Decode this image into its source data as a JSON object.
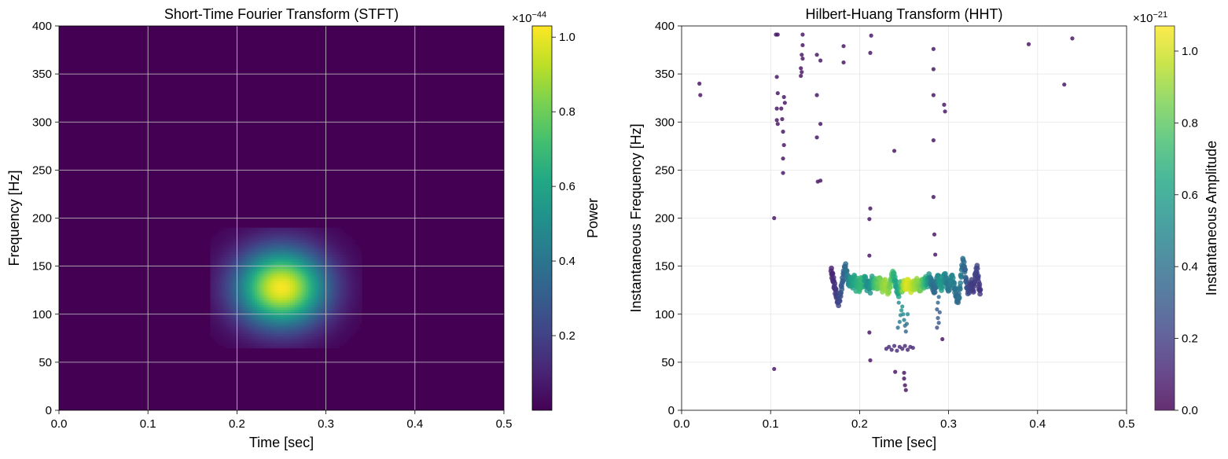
{
  "chart_data": [
    {
      "type": "heatmap",
      "title": "Short-Time Fourier Transform (STFT)",
      "xlabel": "Time [sec]",
      "ylabel": "Frequency [Hz]",
      "xlim": [
        0,
        0.5
      ],
      "ylim": [
        0,
        400
      ],
      "xticks": [
        0.0,
        0.1,
        0.2,
        0.3,
        0.4,
        0.5
      ],
      "xtick_labels": [
        "0.0",
        "0.1",
        "0.2",
        "0.3",
        "0.4",
        "0.5"
      ],
      "yticks": [
        0,
        50,
        100,
        150,
        200,
        250,
        300,
        350,
        400
      ],
      "ytick_labels": [
        "0",
        "50",
        "100",
        "150",
        "200",
        "250",
        "300",
        "350",
        "400"
      ],
      "grid": true,
      "colormap": "viridis",
      "blob": {
        "center_time": 0.25,
        "center_freq": 128,
        "time_sigma": 0.035,
        "freq_sigma": 28,
        "time_extent": [
          0.17,
          0.34
        ],
        "freq_extent": [
          65,
          190
        ],
        "peak_power": 1.02
      },
      "colorbar": {
        "label": "Power",
        "range": [
          0.0,
          1.03
        ],
        "ticks": [
          0.2,
          0.4,
          0.6,
          0.8,
          1.0
        ],
        "tick_labels": [
          "0.2",
          "0.4",
          "0.6",
          "0.8",
          "1.0"
        ],
        "scale_label": "×10",
        "scale_exp": "−44"
      }
    },
    {
      "type": "scatter",
      "title": "Hilbert-Huang Transform (HHT)",
      "xlabel": "Time [sec]",
      "ylabel": "Instantaneous Frequency [Hz]",
      "xlim": [
        0,
        0.5
      ],
      "ylim": [
        0,
        400
      ],
      "xticks": [
        0.0,
        0.1,
        0.2,
        0.3,
        0.4,
        0.5
      ],
      "xtick_labels": [
        "0.0",
        "0.1",
        "0.2",
        "0.3",
        "0.4",
        "0.5"
      ],
      "yticks": [
        0,
        50,
        100,
        150,
        200,
        250,
        300,
        350,
        400
      ],
      "ytick_labels": [
        "0",
        "50",
        "100",
        "150",
        "200",
        "250",
        "300",
        "350",
        "400"
      ],
      "grid": true,
      "colormap": "viridis",
      "points": [
        [
          0.02,
          340,
          0.05
        ],
        [
          0.021,
          328,
          0.05
        ],
        [
          0.104,
          43,
          0.05
        ],
        [
          0.104,
          200,
          0.05
        ],
        [
          0.106,
          391,
          0.05
        ],
        [
          0.108,
          391,
          0.05
        ],
        [
          0.107,
          347,
          0.05
        ],
        [
          0.108,
          330,
          0.05
        ],
        [
          0.107,
          314,
          0.05
        ],
        [
          0.107,
          302,
          0.05
        ],
        [
          0.108,
          298,
          0.05
        ],
        [
          0.112,
          314,
          0.05
        ],
        [
          0.113,
          303,
          0.05
        ],
        [
          0.115,
          326,
          0.05
        ],
        [
          0.116,
          320,
          0.05
        ],
        [
          0.114,
          290,
          0.05
        ],
        [
          0.115,
          276,
          0.05
        ],
        [
          0.114,
          262,
          0.05
        ],
        [
          0.114,
          247,
          0.05
        ],
        [
          0.136,
          391,
          0.05
        ],
        [
          0.136,
          380,
          0.05
        ],
        [
          0.135,
          370,
          0.05
        ],
        [
          0.136,
          366,
          0.05
        ],
        [
          0.134,
          356,
          0.05
        ],
        [
          0.135,
          352,
          0.05
        ],
        [
          0.134,
          348,
          0.05
        ],
        [
          0.152,
          370,
          0.05
        ],
        [
          0.156,
          364,
          0.05
        ],
        [
          0.152,
          328,
          0.05
        ],
        [
          0.156,
          298,
          0.05
        ],
        [
          0.152,
          284,
          0.05
        ],
        [
          0.153,
          238,
          0.05
        ],
        [
          0.156,
          239,
          0.05
        ],
        [
          0.182,
          379,
          0.05
        ],
        [
          0.182,
          362,
          0.05
        ],
        [
          0.213,
          390,
          0.05
        ],
        [
          0.212,
          372,
          0.05
        ],
        [
          0.212,
          210,
          0.05
        ],
        [
          0.211,
          199,
          0.05
        ],
        [
          0.211,
          161,
          0.05
        ],
        [
          0.211,
          81,
          0.05
        ],
        [
          0.212,
          52,
          0.05
        ],
        [
          0.239,
          270,
          0.05
        ],
        [
          0.283,
          376,
          0.05
        ],
        [
          0.283,
          355,
          0.05
        ],
        [
          0.283,
          328,
          0.05
        ],
        [
          0.283,
          281,
          0.05
        ],
        [
          0.283,
          222,
          0.05
        ],
        [
          0.284,
          183,
          0.05
        ],
        [
          0.285,
          162,
          0.05
        ],
        [
          0.295,
          318,
          0.05
        ],
        [
          0.296,
          311,
          0.05
        ],
        [
          0.293,
          74,
          0.05
        ],
        [
          0.39,
          381,
          0.05
        ],
        [
          0.43,
          339,
          0.05
        ],
        [
          0.439,
          387,
          0.05
        ],
        [
          0.24,
          40,
          0.05
        ],
        [
          0.25,
          39,
          0.05
        ],
        [
          0.25,
          33,
          0.05
        ],
        [
          0.251,
          26,
          0.05
        ],
        [
          0.252,
          21,
          0.05
        ],
        [
          0.243,
          86,
          0.4
        ],
        [
          0.245,
          92,
          0.45
        ],
        [
          0.246,
          99,
          0.5
        ],
        [
          0.247,
          104,
          0.55
        ],
        [
          0.248,
          108,
          0.55
        ],
        [
          0.249,
          100,
          0.5
        ],
        [
          0.25,
          94,
          0.45
        ],
        [
          0.251,
          88,
          0.4
        ],
        [
          0.252,
          82,
          0.35
        ],
        [
          0.253,
          90,
          0.4
        ],
        [
          0.254,
          100,
          0.5
        ],
        [
          0.244,
          112,
          0.5
        ],
        [
          0.289,
          118,
          0.35
        ],
        [
          0.288,
          112,
          0.35
        ],
        [
          0.287,
          105,
          0.3
        ],
        [
          0.288,
          96,
          0.3
        ],
        [
          0.289,
          91,
          0.3
        ],
        [
          0.29,
          102,
          0.3
        ],
        [
          0.287,
          86,
          0.25
        ],
        [
          0.23,
          64,
          0.12
        ],
        [
          0.233,
          66,
          0.12
        ],
        [
          0.236,
          63,
          0.12
        ],
        [
          0.239,
          67,
          0.12
        ],
        [
          0.242,
          62,
          0.12
        ],
        [
          0.245,
          66,
          0.12
        ],
        [
          0.248,
          64,
          0.12
        ],
        [
          0.251,
          67,
          0.12
        ],
        [
          0.254,
          63,
          0.12
        ],
        [
          0.257,
          66,
          0.12
        ],
        [
          0.26,
          65,
          0.12
        ]
      ],
      "band": [
        [
          0.168,
          145,
          0.1
        ],
        [
          0.17,
          138,
          0.12
        ],
        [
          0.172,
          128,
          0.15
        ],
        [
          0.174,
          120,
          0.18
        ],
        [
          0.176,
          112,
          0.2
        ],
        [
          0.178,
          118,
          0.25
        ],
        [
          0.18,
          130,
          0.3
        ],
        [
          0.182,
          142,
          0.33
        ],
        [
          0.184,
          150,
          0.36
        ],
        [
          0.186,
          140,
          0.42
        ],
        [
          0.188,
          132,
          0.5
        ],
        [
          0.19,
          136,
          0.55
        ],
        [
          0.192,
          130,
          0.6
        ],
        [
          0.194,
          138,
          0.62
        ],
        [
          0.196,
          128,
          0.65
        ],
        [
          0.198,
          134,
          0.68
        ],
        [
          0.2,
          126,
          0.7
        ],
        [
          0.202,
          136,
          0.7
        ],
        [
          0.204,
          130,
          0.72
        ],
        [
          0.206,
          138,
          0.6
        ],
        [
          0.208,
          128,
          0.55
        ],
        [
          0.21,
          132,
          0.5
        ],
        [
          0.212,
          126,
          0.55
        ],
        [
          0.214,
          136,
          0.6
        ],
        [
          0.216,
          130,
          0.7
        ],
        [
          0.218,
          134,
          0.75
        ],
        [
          0.22,
          128,
          0.8
        ],
        [
          0.222,
          136,
          0.82
        ],
        [
          0.224,
          132,
          0.85
        ],
        [
          0.226,
          126,
          0.88
        ],
        [
          0.228,
          134,
          0.9
        ],
        [
          0.23,
          128,
          0.92
        ],
        [
          0.232,
          124,
          0.9
        ],
        [
          0.234,
          130,
          0.85
        ],
        [
          0.236,
          138,
          0.8
        ],
        [
          0.238,
          142,
          0.7
        ],
        [
          0.24,
          134,
          0.65
        ],
        [
          0.242,
          126,
          0.6
        ],
        [
          0.244,
          122,
          0.62
        ],
        [
          0.246,
          130,
          0.7
        ],
        [
          0.248,
          126,
          0.85
        ],
        [
          0.25,
          132,
          0.95
        ],
        [
          0.252,
          128,
          1.0
        ],
        [
          0.254,
          134,
          1.02
        ],
        [
          0.256,
          130,
          1.0
        ],
        [
          0.258,
          126,
          0.98
        ],
        [
          0.26,
          132,
          0.95
        ],
        [
          0.262,
          128,
          0.92
        ],
        [
          0.264,
          134,
          0.9
        ],
        [
          0.266,
          130,
          0.88
        ],
        [
          0.268,
          126,
          0.85
        ],
        [
          0.27,
          134,
          0.82
        ],
        [
          0.272,
          130,
          0.75
        ],
        [
          0.274,
          136,
          0.7
        ],
        [
          0.276,
          132,
          0.62
        ],
        [
          0.278,
          138,
          0.55
        ],
        [
          0.28,
          134,
          0.45
        ],
        [
          0.282,
          130,
          0.4
        ],
        [
          0.284,
          124,
          0.35
        ],
        [
          0.286,
          132,
          0.4
        ],
        [
          0.288,
          138,
          0.5
        ],
        [
          0.29,
          134,
          0.55
        ],
        [
          0.292,
          128,
          0.6
        ],
        [
          0.294,
          136,
          0.55
        ],
        [
          0.296,
          140,
          0.5
        ],
        [
          0.298,
          132,
          0.45
        ],
        [
          0.3,
          126,
          0.4
        ],
        [
          0.302,
          134,
          0.45
        ],
        [
          0.304,
          138,
          0.5
        ],
        [
          0.306,
          130,
          0.45
        ],
        [
          0.308,
          122,
          0.4
        ],
        [
          0.31,
          114,
          0.35
        ],
        [
          0.312,
          120,
          0.4
        ],
        [
          0.314,
          140,
          0.45
        ],
        [
          0.316,
          155,
          0.4
        ],
        [
          0.318,
          148,
          0.35
        ],
        [
          0.32,
          132,
          0.3
        ],
        [
          0.322,
          124,
          0.25
        ],
        [
          0.324,
          128,
          0.22
        ],
        [
          0.326,
          132,
          0.2
        ],
        [
          0.328,
          126,
          0.18
        ],
        [
          0.33,
          140,
          0.2
        ],
        [
          0.332,
          148,
          0.22
        ],
        [
          0.334,
          130,
          0.18
        ],
        [
          0.336,
          122,
          0.15
        ]
      ],
      "colorbar": {
        "label": "Instantaneous Amplitude",
        "range": [
          0.0,
          1.07
        ],
        "ticks": [
          0.0,
          0.2,
          0.4,
          0.6,
          0.8,
          1.0
        ],
        "tick_labels": [
          "0.0",
          "0.2",
          "0.4",
          "0.6",
          "0.8",
          "1.0"
        ],
        "scale_label": "×10",
        "scale_exp": "−21"
      }
    }
  ],
  "colors": {
    "grid_stft": "#c8c8c8",
    "grid_hht": "#e6e6e6",
    "background_low": "#440154",
    "axis": "#000000"
  }
}
